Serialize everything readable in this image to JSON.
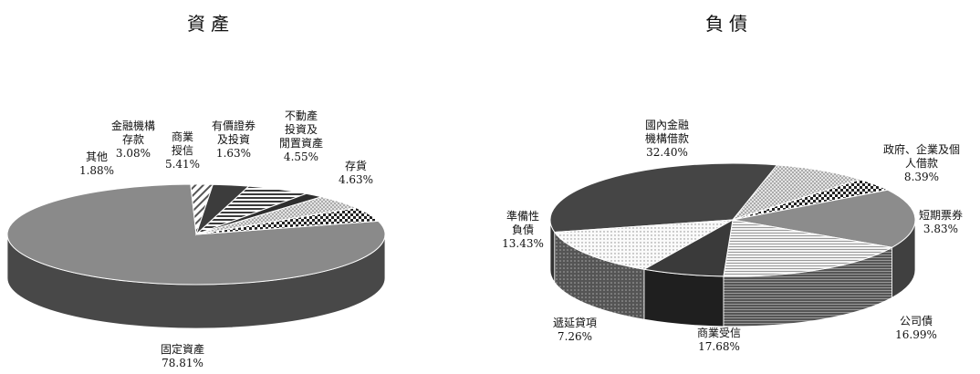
{
  "chart_data": [
    {
      "type": "pie",
      "title": "資產",
      "slices": [
        {
          "label_lines": [
            "固定資產"
          ],
          "percent_text": "78.81%",
          "value": 78.81
        },
        {
          "label_lines": [
            "其他"
          ],
          "percent_text": "1.88%",
          "value": 1.88
        },
        {
          "label_lines": [
            "金融機構",
            "存款"
          ],
          "percent_text": "3.08%",
          "value": 3.08
        },
        {
          "label_lines": [
            "商業",
            "授信"
          ],
          "percent_text": "5.41%",
          "value": 5.41
        },
        {
          "label_lines": [
            "有價證券",
            "及投資"
          ],
          "percent_text": "1.63%",
          "value": 1.63
        },
        {
          "label_lines": [
            "不動產",
            "投資及",
            "閒置資產"
          ],
          "percent_text": "4.55%",
          "value": 4.55
        },
        {
          "label_lines": [
            "存貨"
          ],
          "percent_text": "4.63%",
          "value": 4.63
        }
      ]
    },
    {
      "type": "pie",
      "title": "負債",
      "slices": [
        {
          "label_lines": [
            "國內金融",
            "機構借款"
          ],
          "percent_text": "32.40%",
          "value": 32.4
        },
        {
          "label_lines": [
            "政府、企業及個",
            "人借款"
          ],
          "percent_text": "8.39%",
          "value": 8.39
        },
        {
          "label_lines": [
            "短期票券"
          ],
          "percent_text": "3.83%",
          "value": 3.83
        },
        {
          "label_lines": [
            "公司債"
          ],
          "percent_text": "16.99%",
          "value": 16.99
        },
        {
          "label_lines": [
            "商業受信"
          ],
          "percent_text": "17.68%",
          "value": 17.68
        },
        {
          "label_lines": [
            "遞延貸項"
          ],
          "percent_text": "7.26%",
          "value": 7.26
        },
        {
          "label_lines": [
            "準備性",
            "負債"
          ],
          "percent_text": "13.43%",
          "value": 13.43
        }
      ]
    }
  ]
}
